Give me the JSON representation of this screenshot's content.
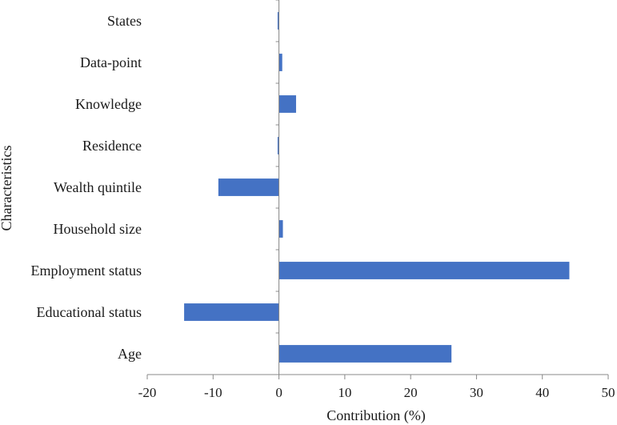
{
  "chart_data": {
    "type": "bar",
    "orientation": "horizontal",
    "categories": [
      "States",
      "Data-point",
      "Knowledge",
      "Residence",
      "Wealth quintile",
      "Household size",
      "Employment status",
      "Educational status",
      "Age"
    ],
    "values": [
      -0.2,
      0.5,
      2.6,
      -0.2,
      -9.2,
      0.6,
      44.1,
      -14.4,
      26.2
    ],
    "xlabel": "Contribution (%)",
    "ylabel": "Characteristics",
    "xlim": [
      -20,
      50
    ],
    "xticks": [
      -20,
      -10,
      0,
      10,
      20,
      30,
      40,
      50
    ],
    "grid": false,
    "bar_color": "#4472c4",
    "axis_color": "#888888"
  }
}
